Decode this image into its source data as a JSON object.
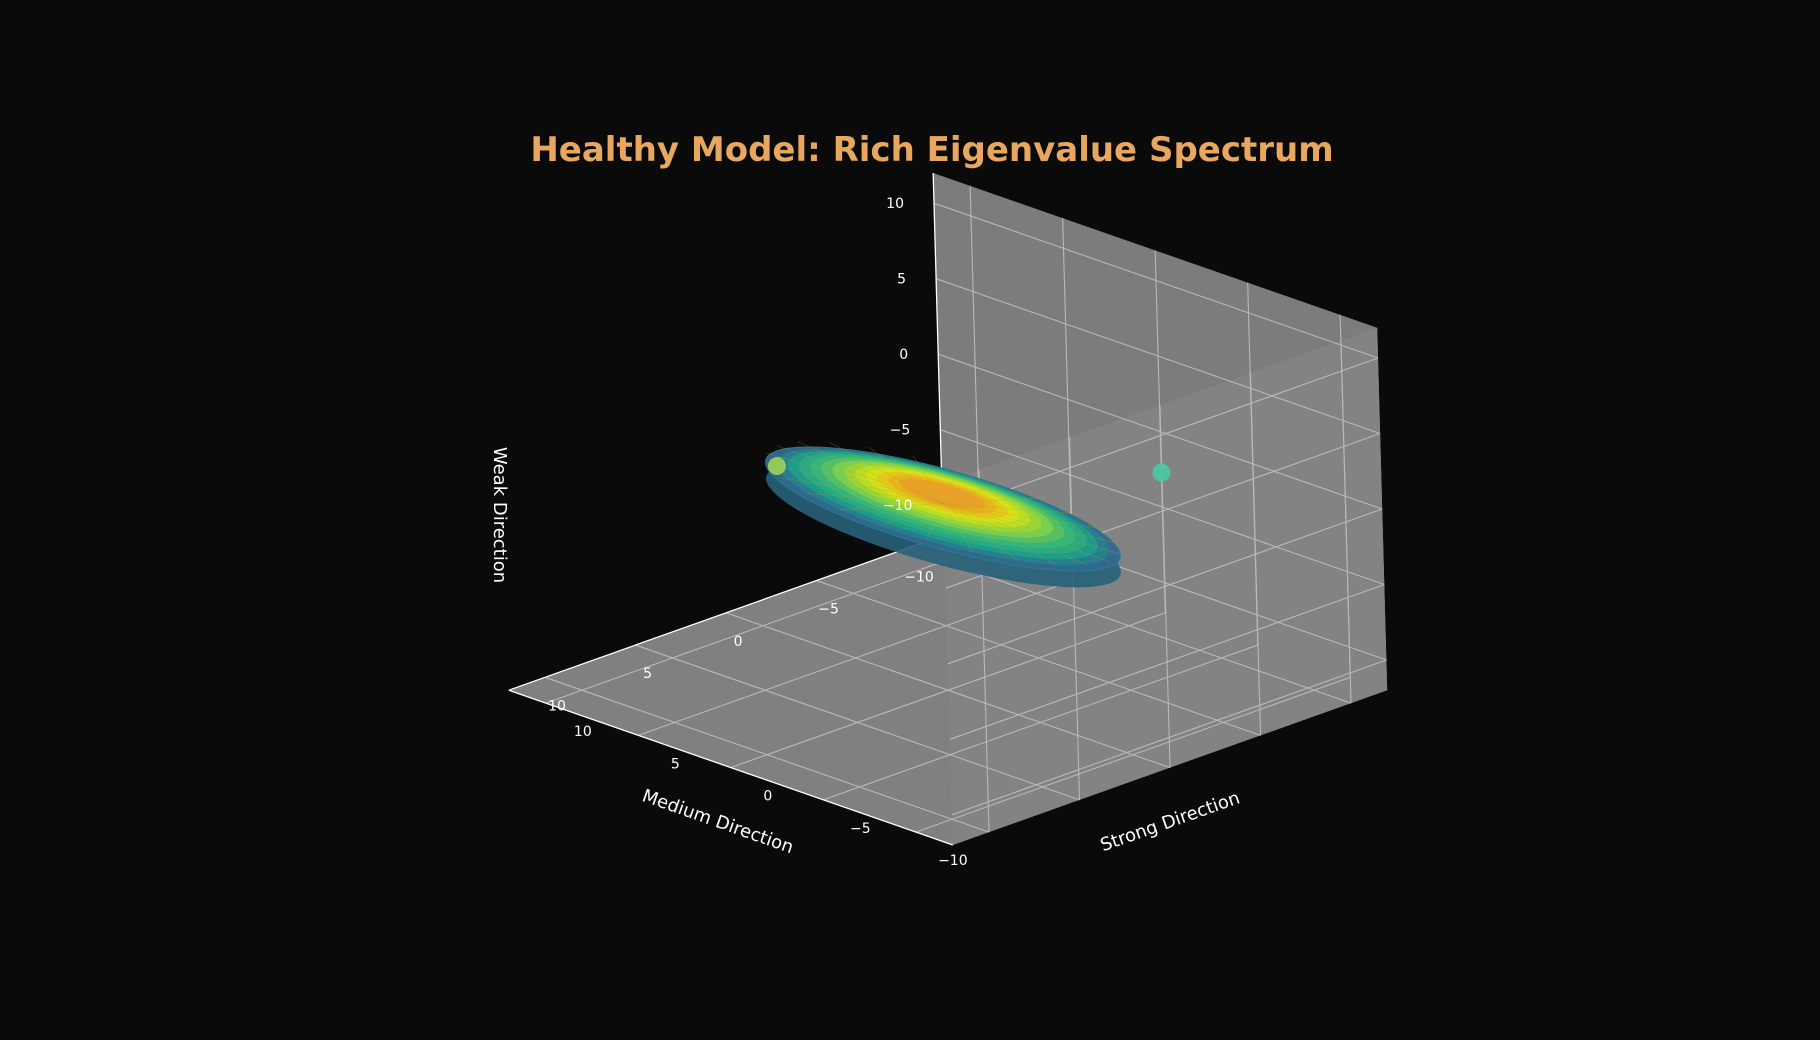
{
  "chart_data": {
    "type": "surface3d",
    "title": "Healthy Model: Rich Eigenvalue Spectrum",
    "axes": {
      "x": {
        "label": "Strong Direction",
        "range": [
          -12,
          12
        ],
        "ticks": [
          -10,
          -5,
          0,
          5,
          10
        ]
      },
      "y": {
        "label": "Medium Direction",
        "range": [
          -12,
          12
        ],
        "ticks": [
          -10,
          -5,
          0,
          5,
          10
        ]
      },
      "z": {
        "label": "Weak Direction",
        "range": [
          -12,
          12
        ],
        "ticks": [
          -10,
          -5,
          0,
          5,
          10
        ]
      }
    },
    "grid": true,
    "surface": {
      "shape": "ellipsoid",
      "center": [
        0,
        0,
        0
      ],
      "semi_axes": {
        "strong": 9,
        "medium": 4,
        "weak": 1.2
      },
      "colormap": "viridis"
    },
    "markers": [
      {
        "x": 9,
        "y": 0,
        "z": -1,
        "color": "#9fd25a"
      },
      {
        "x": -2,
        "y": -10,
        "z": -1,
        "color": "#48c9a6"
      }
    ],
    "colors": {
      "background": "#0a0a0a",
      "pane": "#7f7f7f",
      "grid": "#b8b8b8",
      "title": "#e8a75e",
      "text": "#ffffff"
    }
  }
}
